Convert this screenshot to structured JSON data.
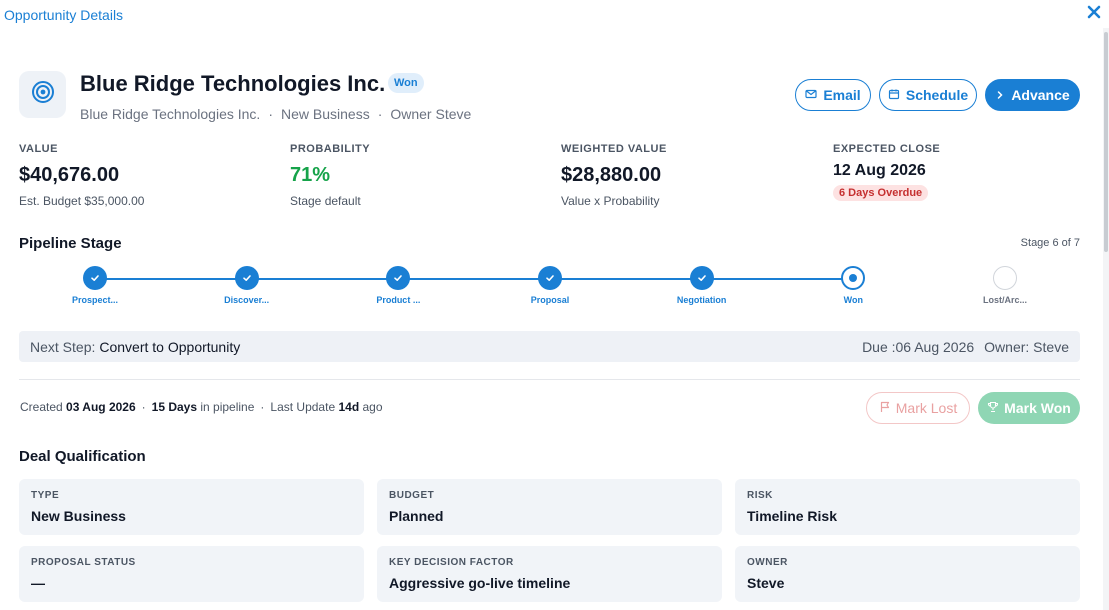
{
  "window": {
    "title": "Opportunity Details",
    "close_icon": "close-icon"
  },
  "header": {
    "company_name": "Blue Ridge Technologies Inc.",
    "status_badge": "Won",
    "sub_company": "Blue Ridge Technologies Inc.",
    "sub_deal_type": "New Business",
    "sub_owner": "Owner Steve",
    "separator": "·"
  },
  "actions": {
    "email_label": "Email",
    "schedule_label": "Schedule",
    "advance_label": "Advance"
  },
  "metrics": {
    "value": {
      "label": "VALUE",
      "amount": "$40,676.00",
      "sub": "Est. Budget $35,000.00"
    },
    "probability": {
      "label": "PROBABILITY",
      "amount": "71%",
      "sub": "Stage default"
    },
    "weighted": {
      "label": "WEIGHTED VALUE",
      "amount": "$28,880.00",
      "sub": "Value x Probability"
    },
    "expected_close": {
      "label": "EXPECTED CLOSE",
      "date": "12 Aug 2026",
      "badge": "6 Days Overdue"
    }
  },
  "pipeline": {
    "title": "Pipeline Stage",
    "stage_count": "Stage 6 of 7",
    "stages": [
      {
        "label": "Prospect...",
        "state": "done"
      },
      {
        "label": "Discover...",
        "state": "done"
      },
      {
        "label": "Product ...",
        "state": "done"
      },
      {
        "label": "Proposal",
        "state": "done"
      },
      {
        "label": "Negotiation",
        "state": "done"
      },
      {
        "label": "Won",
        "state": "current"
      },
      {
        "label": "Lost/Arc...",
        "state": "todo"
      }
    ]
  },
  "next_step": {
    "label": "Next Step:",
    "value": "Convert to Opportunity",
    "due": "Due :06 Aug 2026",
    "owner": "Owner: Steve"
  },
  "meta": {
    "created_label": "Created",
    "created_date": "03 Aug 2026",
    "days": "15 Days",
    "days_suffix": "in pipeline",
    "update_label": "Last Update",
    "update_value": "14d",
    "update_suffix": "ago",
    "separator": "·"
  },
  "outcome": {
    "lost_label": "Mark Lost",
    "won_label": "Mark Won"
  },
  "qualification": {
    "title": "Deal Qualification",
    "cards": [
      {
        "label": "TYPE",
        "value": "New Business"
      },
      {
        "label": "BUDGET",
        "value": "Planned"
      },
      {
        "label": "RISK",
        "value": "Timeline Risk"
      },
      {
        "label": "PROPOSAL STATUS",
        "value": "—"
      },
      {
        "label": "KEY DECISION FACTOR",
        "value": "Aggressive go-live timeline"
      },
      {
        "label": "OWNER",
        "value": "Steve"
      }
    ]
  },
  "colors": {
    "accent": "#1a7fd4",
    "success": "#16a34a",
    "danger_bg": "#fde2e2",
    "danger_text": "#c53030",
    "won_button": "#8fd6b4"
  }
}
